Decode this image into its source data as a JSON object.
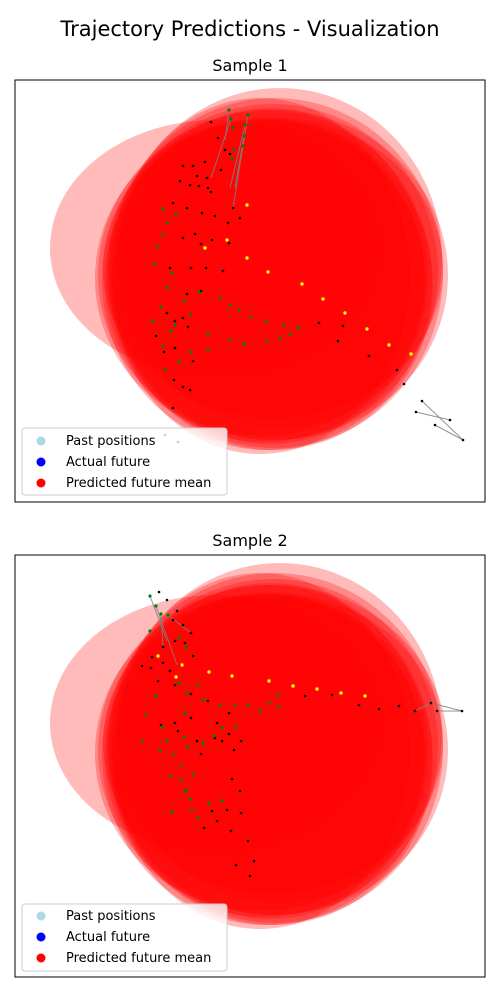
{
  "figure": {
    "title": "Trajectory Predictions - Visualization"
  },
  "colors": {
    "past": "#add8e6",
    "actual": "#0000ff",
    "predicted": "#ff0000",
    "ellipse": "#ff0000",
    "history_marker": "#000000",
    "green_marker": "#008000",
    "yellow_marker": "#ffff00",
    "link": "#808080"
  },
  "chart_data": [
    {
      "type": "scatter",
      "title": "Sample 1",
      "legend": {
        "placement": "lower-left",
        "entries": [
          "Past positions",
          "Actual future",
          "Predicted future mean"
        ]
      },
      "xlim": [
        0,
        470
      ],
      "ylim": [
        0,
        422
      ],
      "axes_ticks": false,
      "ellipses": [
        [
          200,
          168,
          165,
          128
        ],
        [
          265,
          178,
          162,
          170
        ],
        [
          258,
          188,
          170,
          150
        ],
        [
          245,
          196,
          150,
          178
        ],
        [
          258,
          192,
          165,
          168
        ],
        [
          250,
          200,
          160,
          162
        ],
        [
          258,
          195,
          175,
          165
        ],
        [
          260,
          193,
          168,
          175
        ],
        [
          255,
          196,
          158,
          168
        ],
        [
          245,
          198,
          165,
          158
        ],
        [
          258,
          205,
          160,
          165
        ],
        [
          252,
          200,
          165,
          170
        ]
      ],
      "history": [
        [
          196,
          42
        ],
        [
          203,
          58
        ],
        [
          210,
          70
        ],
        [
          190,
          82
        ],
        [
          206,
          90
        ],
        [
          215,
          74
        ],
        [
          168,
          86
        ],
        [
          178,
          86
        ],
        [
          182,
          96
        ],
        [
          192,
          98
        ],
        [
          165,
          101
        ],
        [
          184,
          106
        ],
        [
          175,
          105
        ],
        [
          193,
          108
        ],
        [
          196,
          112
        ],
        [
          158,
          123
        ],
        [
          172,
          128
        ],
        [
          187,
          133
        ],
        [
          200,
          136
        ],
        [
          218,
          128
        ],
        [
          225,
          138
        ],
        [
          213,
          143
        ],
        [
          180,
          154
        ],
        [
          197,
          160
        ],
        [
          168,
          158
        ],
        [
          186,
          164
        ],
        [
          214,
          163
        ],
        [
          155,
          188
        ],
        [
          176,
          188
        ],
        [
          191,
          188
        ],
        [
          208,
          191
        ],
        [
          186,
          211
        ],
        [
          172,
          214
        ],
        [
          152,
          233
        ],
        [
          168,
          238
        ],
        [
          160,
          241
        ],
        [
          173,
          247
        ],
        [
          141,
          256
        ],
        [
          160,
          268
        ],
        [
          149,
          272
        ],
        [
          178,
          281
        ],
        [
          159,
          300
        ],
        [
          175,
          310
        ],
        [
          158,
          328
        ],
        [
          168,
          307
        ],
        [
          150,
          355
        ],
        [
          163,
          362
        ],
        [
          328,
          246
        ],
        [
          304,
          243
        ],
        [
          323,
          261
        ],
        [
          354,
          276
        ],
        [
          382,
          290
        ],
        [
          389,
          304
        ],
        [
          407,
          321
        ],
        [
          435,
          340
        ],
        [
          448,
          360
        ],
        [
          420,
          345
        ],
        [
          401,
          332
        ]
      ],
      "green": [
        [
          214,
          30
        ],
        [
          216,
          39
        ],
        [
          218,
          48
        ],
        [
          230,
          45
        ],
        [
          229,
          56
        ],
        [
          228,
          66
        ],
        [
          233,
          35
        ],
        [
          219,
          70
        ],
        [
          217,
          79
        ],
        [
          148,
          129
        ],
        [
          161,
          134
        ],
        [
          152,
          143
        ],
        [
          148,
          155
        ],
        [
          142,
          167
        ],
        [
          140,
          184
        ],
        [
          157,
          193
        ],
        [
          152,
          208
        ],
        [
          146,
          227
        ],
        [
          138,
          241
        ],
        [
          156,
          251
        ],
        [
          148,
          266
        ],
        [
          150,
          290
        ],
        [
          164,
          282
        ],
        [
          176,
          272
        ],
        [
          193,
          270
        ],
        [
          160,
          245
        ],
        [
          175,
          235
        ],
        [
          193,
          255
        ],
        [
          215,
          260
        ],
        [
          229,
          264
        ],
        [
          252,
          261
        ],
        [
          265,
          259
        ],
        [
          275,
          254
        ],
        [
          283,
          248
        ],
        [
          269,
          245
        ],
        [
          236,
          237
        ],
        [
          251,
          241
        ],
        [
          224,
          230
        ],
        [
          215,
          225
        ],
        [
          205,
          218
        ],
        [
          184,
          212
        ],
        [
          169,
          221
        ]
      ],
      "yellow": [
        [
          190,
          168
        ],
        [
          212,
          160
        ],
        [
          232,
          178
        ],
        [
          253,
          192
        ],
        [
          287,
          204
        ],
        [
          308,
          219
        ],
        [
          330,
          233
        ],
        [
          352,
          249
        ],
        [
          374,
          265
        ],
        [
          396,
          274
        ],
        [
          232,
          125
        ]
      ],
      "links": [
        [
          [
            214,
            30
          ],
          [
            210,
            60
          ]
        ],
        [
          [
            216,
            39
          ],
          [
            196,
            98
          ]
        ],
        [
          [
            230,
            45
          ],
          [
            215,
            108
          ]
        ],
        [
          [
            229,
            56
          ],
          [
            220,
            108
          ]
        ],
        [
          [
            233,
            35
          ],
          [
            218,
            128
          ]
        ],
        [
          [
            407,
            321
          ],
          [
            448,
            360
          ]
        ],
        [
          [
            420,
            345
          ],
          [
            448,
            360
          ]
        ],
        [
          [
            401,
            332
          ],
          [
            435,
            340
          ]
        ]
      ]
    },
    {
      "type": "scatter",
      "title": "Sample 2",
      "legend": {
        "placement": "lower-left",
        "entries": [
          "Past positions",
          "Actual future",
          "Predicted future mean"
        ]
      },
      "xlim": [
        0,
        470
      ],
      "ylim": [
        0,
        422
      ],
      "axes_ticks": false,
      "ellipses": [
        [
          200,
          168,
          165,
          128
        ],
        [
          265,
          178,
          162,
          170
        ],
        [
          258,
          188,
          170,
          150
        ],
        [
          245,
          196,
          150,
          178
        ],
        [
          258,
          192,
          165,
          168
        ],
        [
          250,
          200,
          160,
          162
        ],
        [
          258,
          195,
          175,
          165
        ],
        [
          260,
          193,
          168,
          175
        ],
        [
          255,
          196,
          158,
          168
        ],
        [
          245,
          198,
          165,
          158
        ],
        [
          258,
          205,
          160,
          165
        ],
        [
          252,
          200,
          165,
          170
        ]
      ],
      "history": [
        [
          144,
          37
        ],
        [
          152,
          45
        ],
        [
          162,
          56
        ],
        [
          158,
          65
        ],
        [
          168,
          70
        ],
        [
          176,
          78
        ],
        [
          148,
          92
        ],
        [
          160,
          86
        ],
        [
          170,
          88
        ],
        [
          137,
          102
        ],
        [
          127,
          111
        ],
        [
          136,
          113
        ],
        [
          148,
          108
        ],
        [
          155,
          116
        ],
        [
          166,
          110
        ],
        [
          178,
          101
        ],
        [
          143,
          126
        ],
        [
          160,
          130
        ],
        [
          176,
          139
        ],
        [
          193,
          146
        ],
        [
          214,
          158
        ],
        [
          202,
          168
        ],
        [
          176,
          163
        ],
        [
          160,
          168
        ],
        [
          146,
          170
        ],
        [
          163,
          176
        ],
        [
          182,
          186
        ],
        [
          200,
          183
        ],
        [
          214,
          179
        ],
        [
          226,
          186
        ],
        [
          186,
          199
        ],
        [
          207,
          186
        ],
        [
          219,
          195
        ],
        [
          217,
          224
        ],
        [
          225,
          236
        ],
        [
          197,
          256
        ],
        [
          189,
          273
        ],
        [
          212,
          255
        ],
        [
          226,
          258
        ],
        [
          202,
          266
        ],
        [
          216,
          276
        ],
        [
          233,
          286
        ],
        [
          239,
          306
        ],
        [
          221,
          310
        ],
        [
          235,
          321
        ],
        [
          290,
          141
        ],
        [
          317,
          140
        ],
        [
          344,
          150
        ],
        [
          364,
          154
        ],
        [
          384,
          151
        ],
        [
          416,
          148
        ],
        [
          447,
          156
        ],
        [
          422,
          156
        ],
        [
          400,
          156
        ]
      ],
      "green": [
        [
          135,
          41
        ],
        [
          141,
          51
        ],
        [
          146,
          59
        ],
        [
          135,
          76
        ],
        [
          153,
          60
        ],
        [
          164,
          83
        ],
        [
          171,
          92
        ],
        [
          141,
          141
        ],
        [
          131,
          160
        ],
        [
          147,
          172
        ],
        [
          127,
          186
        ],
        [
          152,
          186
        ],
        [
          158,
          200
        ],
        [
          173,
          192
        ],
        [
          188,
          188
        ],
        [
          199,
          181
        ],
        [
          207,
          173
        ],
        [
          221,
          172
        ],
        [
          183,
          130
        ],
        [
          164,
          128
        ],
        [
          172,
          138
        ],
        [
          188,
          145
        ],
        [
          205,
          150
        ],
        [
          220,
          150
        ],
        [
          233,
          150
        ],
        [
          245,
          156
        ],
        [
          254,
          148
        ],
        [
          263,
          140
        ],
        [
          264,
          152
        ],
        [
          170,
          158
        ],
        [
          166,
          210
        ],
        [
          166,
          225
        ],
        [
          170,
          236
        ],
        [
          175,
          244
        ],
        [
          177,
          255
        ],
        [
          183,
          263
        ],
        [
          194,
          248
        ],
        [
          207,
          246
        ],
        [
          157,
          257
        ],
        [
          178,
          220
        ],
        [
          156,
          221
        ],
        [
          169,
          182
        ],
        [
          145,
          196
        ],
        [
          171,
          235
        ]
      ],
      "yellow": [
        [
          143,
          101
        ],
        [
          167,
          110
        ],
        [
          194,
          117
        ],
        [
          217,
          121
        ],
        [
          254,
          126
        ],
        [
          278,
          131
        ],
        [
          302,
          134
        ],
        [
          326,
          138
        ],
        [
          350,
          141
        ],
        [
          161,
          122
        ]
      ],
      "links": [
        [
          [
            135,
            41
          ],
          [
            152,
            86
          ]
        ],
        [
          [
            141,
            51
          ],
          [
            162,
            110
          ]
        ],
        [
          [
            146,
            59
          ],
          [
            148,
            92
          ]
        ],
        [
          [
            153,
            60
          ],
          [
            176,
            78
          ]
        ],
        [
          [
            416,
            148
          ],
          [
            447,
            156
          ]
        ],
        [
          [
            422,
            156
          ],
          [
            447,
            156
          ]
        ],
        [
          [
            400,
            156
          ],
          [
            416,
            148
          ]
        ]
      ]
    }
  ]
}
